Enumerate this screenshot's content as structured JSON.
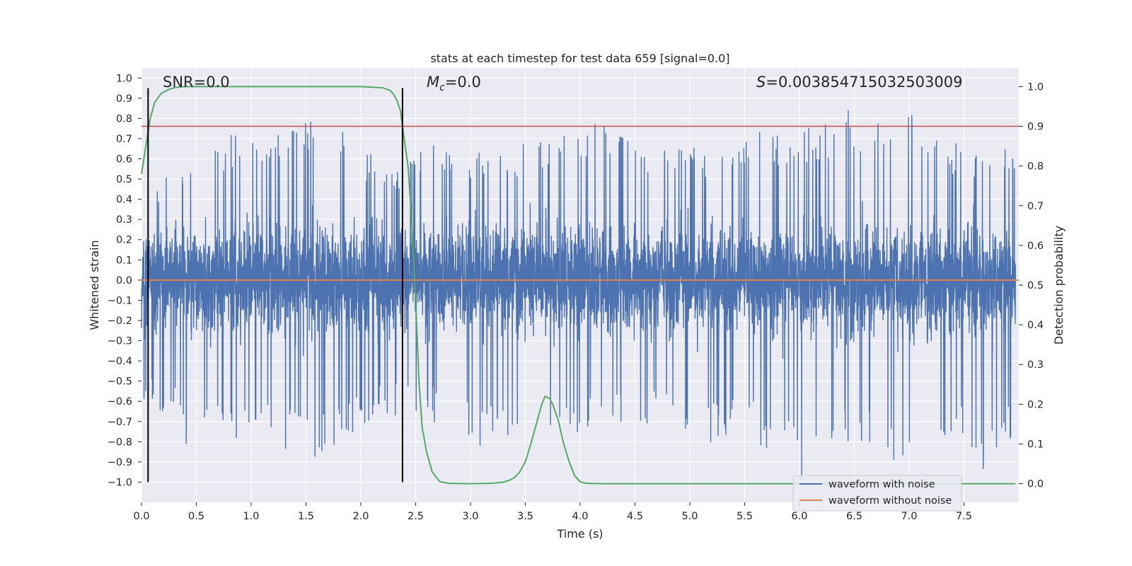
{
  "chart_data": {
    "type": "line",
    "title": "stats at each timestep for test data 659 [signal=0.0]",
    "xlabel": "Time (s)",
    "ylabel": "Whitened strain",
    "y2label": "Detection probability",
    "xlim": [
      0.0,
      8.0
    ],
    "ylim": [
      -1.1,
      1.05
    ],
    "y2lim": [
      -0.047,
      1.047
    ],
    "xticks": [
      "0.0",
      "0.5",
      "1.0",
      "1.5",
      "2.0",
      "2.5",
      "3.0",
      "3.5",
      "4.0",
      "4.5",
      "5.0",
      "5.5",
      "6.0",
      "6.5",
      "7.0",
      "7.5"
    ],
    "yticks": [
      "1.0",
      "0.9",
      "0.8",
      "0.7",
      "0.6",
      "0.5",
      "0.4",
      "0.3",
      "0.2",
      "0.1",
      "0.0",
      "−0.1",
      "−0.2",
      "−0.3",
      "−0.4",
      "−0.5",
      "−0.6",
      "−0.7",
      "−0.8",
      "−0.9",
      "−1.0"
    ],
    "y2ticks": [
      "1.0",
      "0.9",
      "0.8",
      "0.7",
      "0.6",
      "0.5",
      "0.4",
      "0.3",
      "0.2",
      "0.1",
      "0.0"
    ],
    "annotations": {
      "snr": "SNR=0.0",
      "mc_symbol": "M",
      "mc_sub": "c",
      "mc_value": "=0.0",
      "s_symbol": "S",
      "s_value": "=0.003854715032503009"
    },
    "legend": {
      "placement": "lower-right",
      "entries": [
        "waveform with noise",
        "waveform without noise"
      ]
    },
    "series": [
      {
        "name": "waveform with noise",
        "color": "#4c72b0",
        "axis": "left",
        "envelope_note": "dense noise, roughly uniform over 0-8 s",
        "upper_envelope": [
          [
            0.05,
            0.55
          ],
          [
            0.2,
            0.5
          ],
          [
            0.3,
            0.65
          ],
          [
            0.5,
            0.55
          ],
          [
            0.6,
            0.68
          ],
          [
            0.9,
            0.75
          ],
          [
            1.2,
            0.72
          ],
          [
            1.5,
            0.8
          ],
          [
            1.9,
            0.84
          ],
          [
            2.0,
            0.65
          ],
          [
            2.2,
            0.6
          ],
          [
            2.3,
            0.55
          ],
          [
            2.5,
            0.65
          ],
          [
            2.6,
            0.75
          ],
          [
            2.9,
            0.66
          ],
          [
            3.4,
            0.68
          ],
          [
            3.8,
            0.72
          ],
          [
            4.1,
            0.82
          ],
          [
            4.5,
            0.7
          ],
          [
            5.0,
            0.7
          ],
          [
            5.3,
            0.65
          ],
          [
            5.6,
            0.75
          ],
          [
            5.9,
            0.72
          ],
          [
            6.2,
            0.78
          ],
          [
            6.5,
            0.86
          ],
          [
            6.8,
            0.78
          ],
          [
            7.1,
            0.83
          ],
          [
            7.5,
            0.65
          ],
          [
            7.7,
            0.6
          ],
          [
            7.9,
            0.72
          ]
        ],
        "lower_envelope": [
          [
            0.05,
            -0.6
          ],
          [
            0.3,
            -0.7
          ],
          [
            0.4,
            -0.85
          ],
          [
            0.5,
            -0.7
          ],
          [
            0.7,
            -0.75
          ],
          [
            0.9,
            -0.8
          ],
          [
            1.1,
            -0.8
          ],
          [
            1.4,
            -0.85
          ],
          [
            1.55,
            -0.93
          ],
          [
            1.8,
            -0.8
          ],
          [
            2.1,
            -0.7
          ],
          [
            2.3,
            -0.68
          ],
          [
            2.5,
            -0.65
          ],
          [
            3.1,
            -0.85
          ],
          [
            3.4,
            -0.75
          ],
          [
            3.8,
            -0.8
          ],
          [
            4.2,
            -0.75
          ],
          [
            4.8,
            -0.7
          ],
          [
            5.0,
            -0.83
          ],
          [
            5.5,
            -0.78
          ],
          [
            5.95,
            -0.9
          ],
          [
            6.0,
            -1.02
          ],
          [
            6.1,
            -0.95
          ],
          [
            6.5,
            -0.8
          ],
          [
            7.2,
            -0.98
          ],
          [
            7.4,
            -0.75
          ],
          [
            7.65,
            -0.96
          ],
          [
            7.9,
            -0.8
          ]
        ]
      },
      {
        "name": "waveform without noise",
        "color": "#dd8452",
        "axis": "left",
        "x": [
          0.0,
          8.0
        ],
        "y": [
          0.0,
          0.0
        ]
      },
      {
        "name": "detection probability",
        "color": "#55a868",
        "axis": "right",
        "x": [
          0.0,
          0.04,
          0.08,
          0.12,
          0.18,
          0.25,
          0.3,
          0.35,
          0.4,
          0.5,
          0.8,
          1.0,
          1.5,
          2.0,
          2.2,
          2.27,
          2.3,
          2.33,
          2.36,
          2.38,
          2.4,
          2.43,
          2.46,
          2.5,
          2.53,
          2.56,
          2.6,
          2.65,
          2.72,
          2.8,
          3.0,
          3.2,
          3.3,
          3.35,
          3.4,
          3.45,
          3.5,
          3.55,
          3.6,
          3.65,
          3.68,
          3.72,
          3.75,
          3.8,
          3.85,
          3.9,
          3.95,
          4.0,
          4.05,
          4.2,
          6.0,
          7.97
        ],
        "y": [
          0.78,
          0.85,
          0.92,
          0.96,
          0.983,
          0.993,
          0.997,
          0.999,
          1.0,
          1.0,
          1.0,
          1.0,
          1.0,
          1.0,
          0.997,
          0.99,
          0.98,
          0.965,
          0.94,
          0.9,
          0.86,
          0.8,
          0.68,
          0.46,
          0.26,
          0.14,
          0.08,
          0.03,
          0.005,
          0.001,
          0.0,
          0.001,
          0.004,
          0.008,
          0.015,
          0.03,
          0.055,
          0.1,
          0.15,
          0.2,
          0.22,
          0.215,
          0.2,
          0.16,
          0.1,
          0.055,
          0.02,
          0.005,
          0.001,
          0.0,
          0.0,
          0.0
        ]
      }
    ],
    "hlines": [
      {
        "y": 0.9,
        "axis": "right",
        "color": "#c44e52"
      }
    ],
    "vlines": [
      {
        "x": 0.06,
        "axis": "left",
        "ymin": -1.0,
        "ymax": 0.95,
        "color": "#000000"
      },
      {
        "x": 2.38,
        "axis": "left",
        "ymin": -1.0,
        "ymax": 0.95,
        "color": "#000000"
      }
    ]
  }
}
